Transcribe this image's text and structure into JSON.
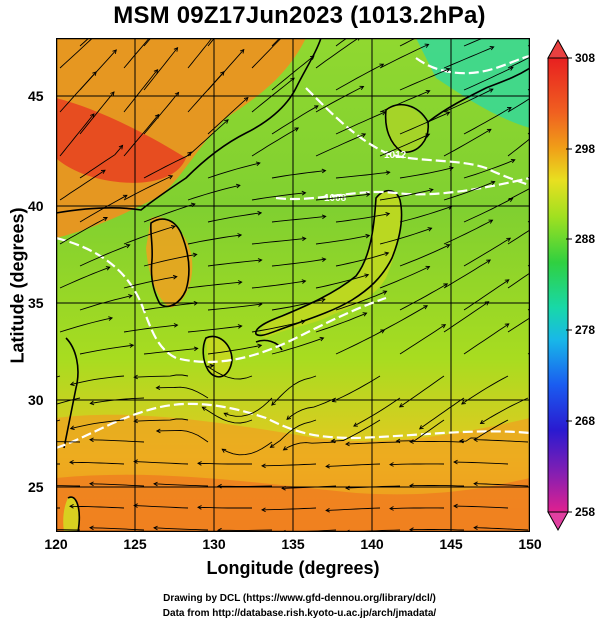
{
  "title": "MSM 09Z17Jun2023 (1013.2hPa)",
  "map": {
    "projection": "equirectangular",
    "lon_range": [
      120,
      150
    ],
    "lat_range": [
      22.5,
      48
    ],
    "xlabel": "Longitude (degrees)",
    "ylabel": "Latitude  (degrees)",
    "xticks": [
      "120",
      "125",
      "130",
      "135",
      "140",
      "145",
      "150"
    ],
    "yticks": [
      "25",
      "30",
      "35",
      "40",
      "45"
    ],
    "field": "temperature (shaded) with streamlines and white contours"
  },
  "contour_labels": [
    "1008",
    "1012"
  ],
  "colorbar": {
    "min": 258,
    "max": 308,
    "ticks": [
      "308",
      "298",
      "288",
      "278",
      "268",
      "258"
    ],
    "colors": [
      "#e0208f",
      "#8a1fb0",
      "#2a1ad0",
      "#1a5cf0",
      "#18b8e8",
      "#18d8a8",
      "#30d040",
      "#a0e020",
      "#e8e020",
      "#f0a018",
      "#f06020",
      "#e82020"
    ]
  },
  "footer": {
    "line1": "Drawing by DCL (https://www.gfd-dennou.org/library/dcl/)",
    "line2": "Data from http://database.rish.kyoto-u.ac.jp/arch/jmadata/"
  }
}
